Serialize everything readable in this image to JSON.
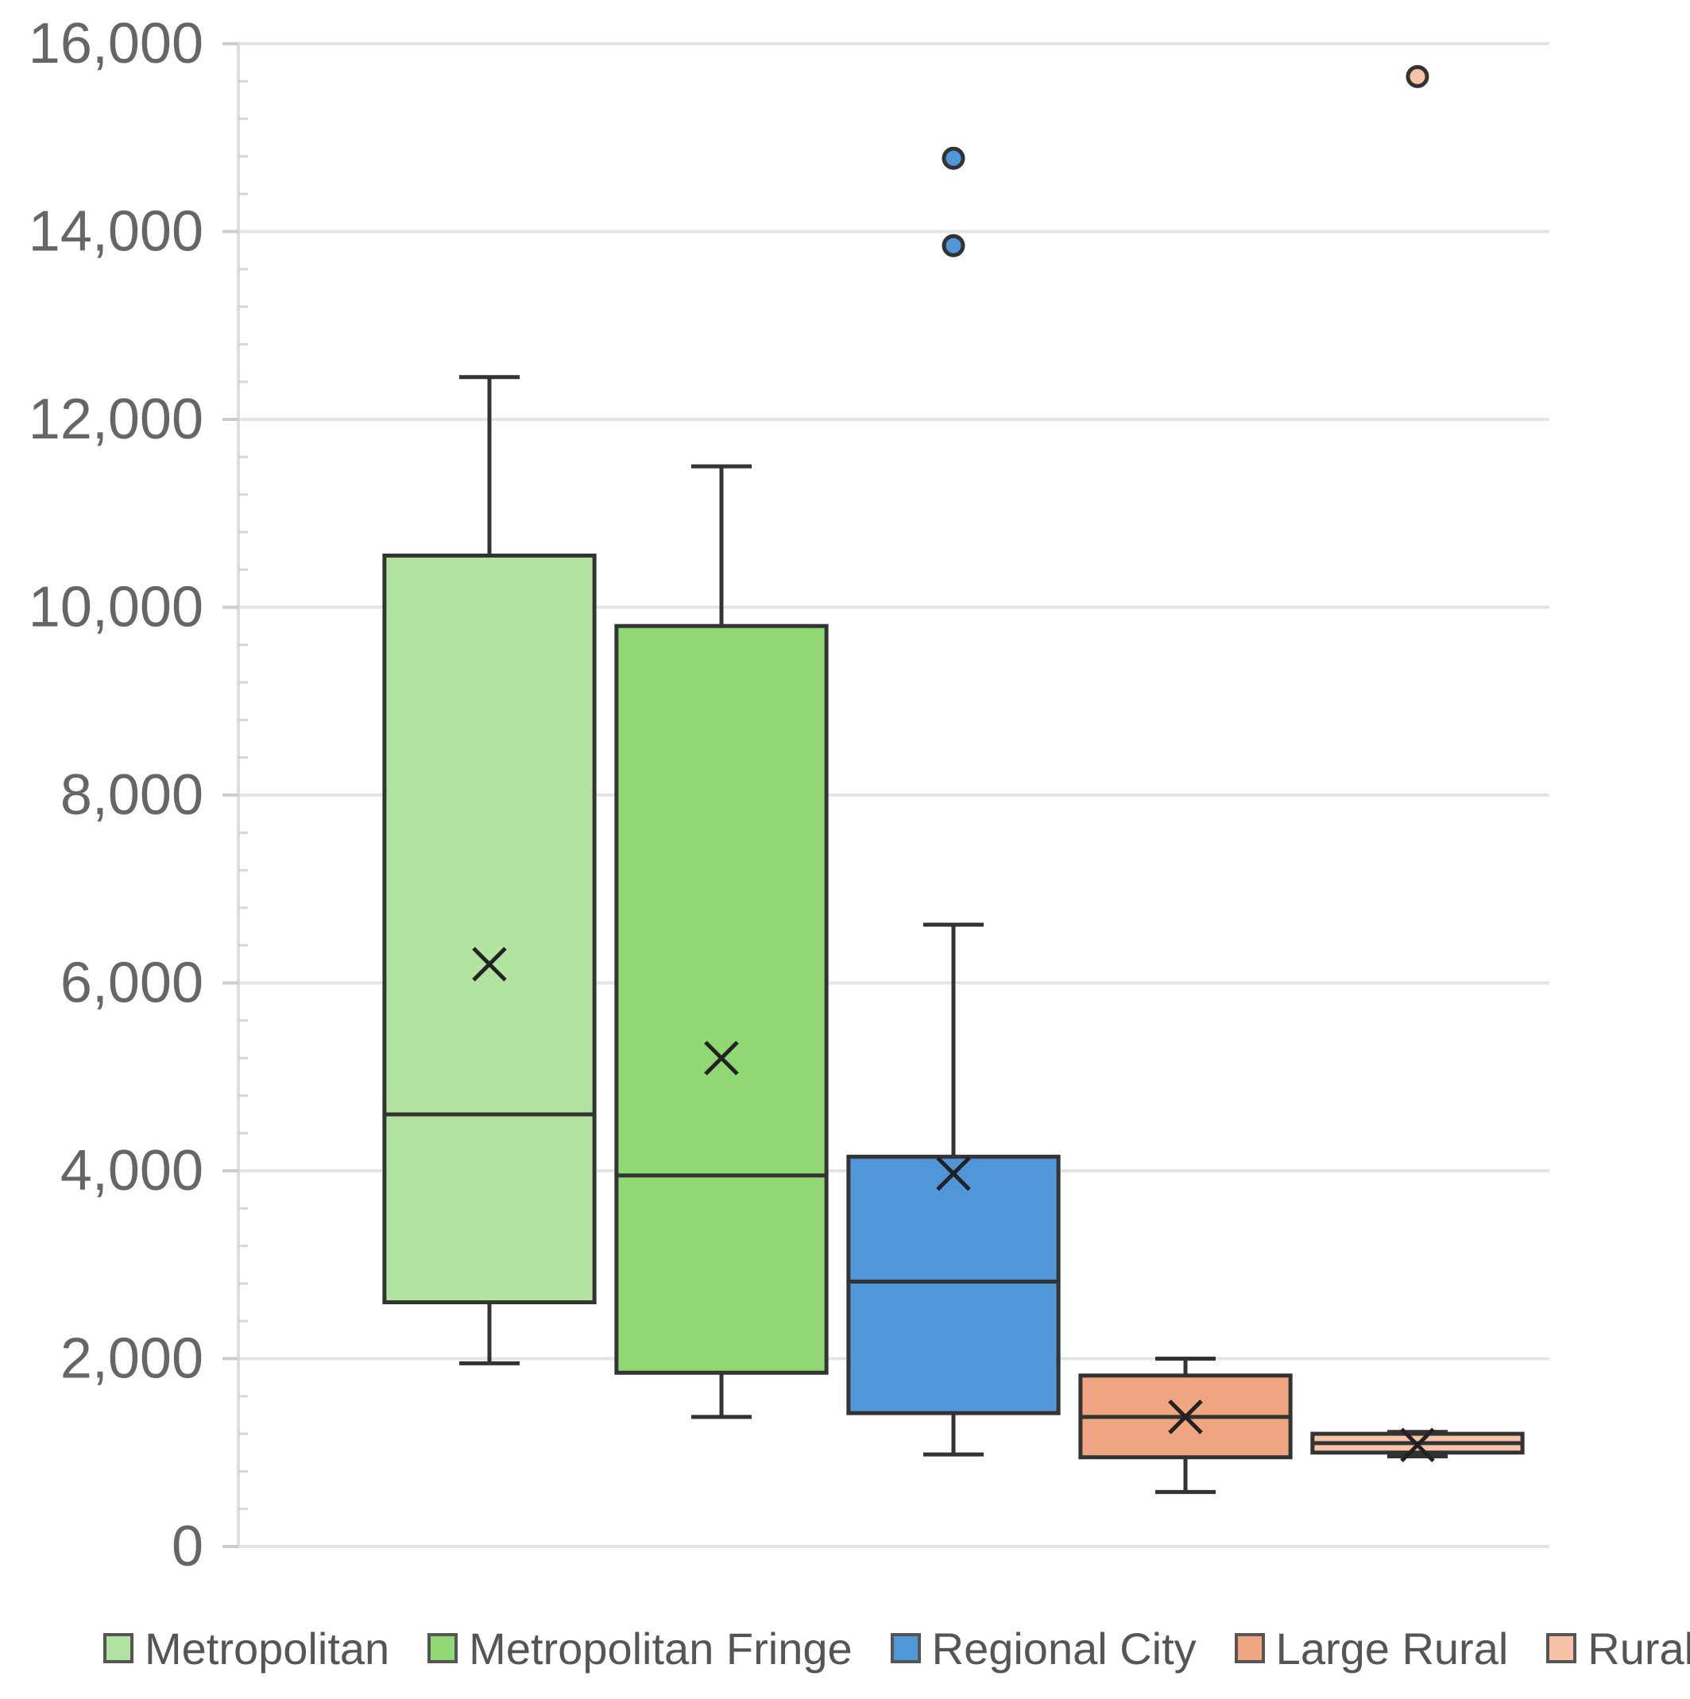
{
  "chart_data": {
    "type": "box",
    "title": "",
    "xlabel": "",
    "ylabel": "",
    "ylim": [
      0,
      16000
    ],
    "yticks": [
      0,
      2000,
      4000,
      6000,
      8000,
      10000,
      12000,
      14000,
      16000
    ],
    "ytick_labels": [
      "0",
      "2,000",
      "4,000",
      "6,000",
      "8,000",
      "10,000",
      "12,000",
      "14,000",
      "16,000"
    ],
    "grid": "horizontal",
    "legend_position": "bottom",
    "series": [
      {
        "name": "Metropolitan",
        "color": "#b3e3a0",
        "min": 1950,
        "q1": 2600,
        "median": 4600,
        "q3": 10550,
        "max": 12450,
        "mean": 6200,
        "outliers": []
      },
      {
        "name": "Metropolitan Fringe",
        "color": "#8fd873",
        "min": 1380,
        "q1": 1850,
        "median": 3950,
        "q3": 9800,
        "max": 11500,
        "mean": 5200,
        "outliers": []
      },
      {
        "name": "Regional City",
        "color": "#4f97d9",
        "min": 980,
        "q1": 1420,
        "median": 2820,
        "q3": 4150,
        "max": 6620,
        "mean": 3970,
        "outliers": [
          13850,
          14780
        ]
      },
      {
        "name": "Large Rural",
        "color": "#efa57f",
        "min": 580,
        "q1": 950,
        "median": 1380,
        "q3": 1820,
        "max": 2000,
        "mean": 1380,
        "outliers": []
      },
      {
        "name": "Rural",
        "color": "#f6c3a6",
        "min": 960,
        "q1": 1000,
        "median": 1100,
        "q3": 1200,
        "max": 1220,
        "mean": 1080,
        "outliers": [
          15650
        ]
      }
    ]
  },
  "legend": {
    "items": [
      {
        "label": "Metropolitan",
        "color": "#b3e3a0"
      },
      {
        "label": "Metropolitan Fringe",
        "color": "#8fd873"
      },
      {
        "label": "Regional City",
        "color": "#4f97d9"
      },
      {
        "label": "Large Rural",
        "color": "#efa57f"
      },
      {
        "label": "Rural",
        "color": "#f6c3a6"
      }
    ]
  }
}
